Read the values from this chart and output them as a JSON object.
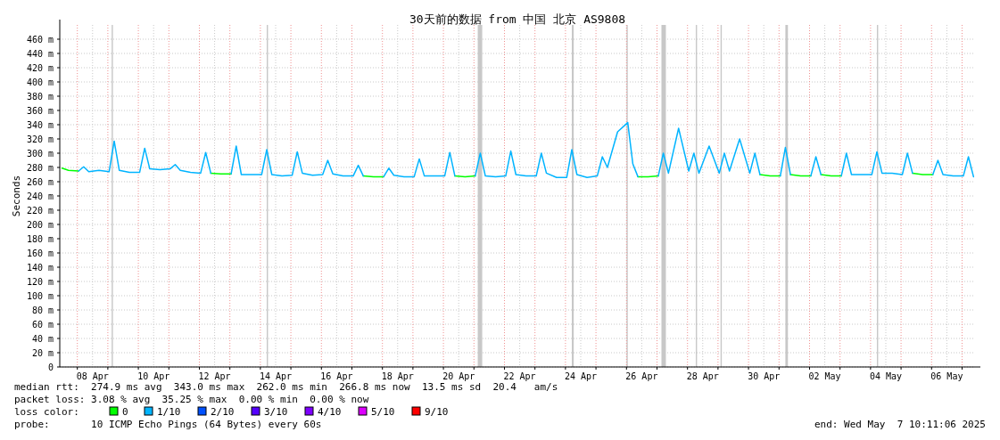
{
  "chart_data": {
    "type": "line",
    "title": "30天前的数据 from 中国 北京 AS9808",
    "ylabel": "Seconds",
    "legend_title": "loss color:",
    "legend": "bottom",
    "grid": true,
    "marker": "none",
    "line_style": "solid",
    "xlim": [
      "2025-04-07T10:11",
      "2025-05-07T10:11"
    ],
    "xticks": [
      {
        "value": "2025-04-08T12:00",
        "label": "08 Apr"
      },
      {
        "value": "2025-04-10T12:00",
        "label": "10 Apr"
      },
      {
        "value": "2025-04-12T12:00",
        "label": "12 Apr"
      },
      {
        "value": "2025-04-14T12:00",
        "label": "14 Apr"
      },
      {
        "value": "2025-04-16T12:00",
        "label": "16 Apr"
      },
      {
        "value": "2025-04-18T12:00",
        "label": "18 Apr"
      },
      {
        "value": "2025-04-20T12:00",
        "label": "20 Apr"
      },
      {
        "value": "2025-04-22T12:00",
        "label": "22 Apr"
      },
      {
        "value": "2025-04-24T12:00",
        "label": "24 Apr"
      },
      {
        "value": "2025-04-26T12:00",
        "label": "26 Apr"
      },
      {
        "value": "2025-04-28T12:00",
        "label": "28 Apr"
      },
      {
        "value": "2025-04-30T12:00",
        "label": "30 Apr"
      },
      {
        "value": "2025-05-02T12:00",
        "label": "02 May"
      },
      {
        "value": "2025-05-04T12:00",
        "label": "04 May"
      },
      {
        "value": "2025-05-06T12:00",
        "label": "06 May"
      },
      {
        "value": "2025-04-08",
        "label": null
      },
      {
        "value": "2025-04-09",
        "label": null
      },
      {
        "value": "2025-04-10",
        "label": null
      },
      {
        "value": "2025-04-11",
        "label": null
      },
      {
        "value": "2025-04-12",
        "label": null
      },
      {
        "value": "2025-04-13",
        "label": null
      },
      {
        "value": "2025-04-14",
        "label": null
      },
      {
        "value": "2025-04-15",
        "label": null
      },
      {
        "value": "2025-04-16",
        "label": null
      },
      {
        "value": "2025-04-17",
        "label": null
      },
      {
        "value": "2025-04-18",
        "label": null
      },
      {
        "value": "2025-04-19",
        "label": null
      },
      {
        "value": "2025-04-20",
        "label": null
      },
      {
        "value": "2025-04-21",
        "label": null
      },
      {
        "value": "2025-04-22",
        "label": null
      },
      {
        "value": "2025-04-23",
        "label": null
      },
      {
        "value": "2025-04-24",
        "label": null
      },
      {
        "value": "2025-04-25",
        "label": null
      },
      {
        "value": "2025-04-26",
        "label": null
      },
      {
        "value": "2025-04-27",
        "label": null
      },
      {
        "value": "2025-04-28",
        "label": null
      },
      {
        "value": "2025-04-29",
        "label": null
      },
      {
        "value": "2025-04-30",
        "label": null
      },
      {
        "value": "2025-05-01",
        "label": null
      },
      {
        "value": "2025-05-02",
        "label": null
      },
      {
        "value": "2025-05-03",
        "label": null
      },
      {
        "value": "2025-05-04",
        "label": null
      },
      {
        "value": "2025-05-05",
        "label": null
      },
      {
        "value": "2025-05-06",
        "label": null
      },
      {
        "value": "2025-05-07",
        "label": null
      }
    ],
    "ylim": [
      0,
      480
    ],
    "yticks": [
      0,
      {
        "value": 20,
        "label": "20 m"
      },
      {
        "value": 40,
        "label": "40 m"
      },
      {
        "value": 60,
        "label": "60 m"
      },
      {
        "value": 80,
        "label": "80 m"
      },
      {
        "value": 100,
        "label": "100 m"
      },
      {
        "value": 120,
        "label": "120 m"
      },
      {
        "value": 140,
        "label": "140 m"
      },
      {
        "value": 160,
        "label": "160 m"
      },
      {
        "value": 180,
        "label": "180 m"
      },
      {
        "value": 200,
        "label": "200 m"
      },
      {
        "value": 220,
        "label": "220 m"
      },
      {
        "value": 240,
        "label": "240 m"
      },
      {
        "value": 260,
        "label": "260 m"
      },
      {
        "value": 280,
        "label": "280 m"
      },
      {
        "value": 300,
        "label": "300 m"
      },
      {
        "value": 320,
        "label": "320 m"
      },
      {
        "value": 340,
        "label": "340 m"
      },
      {
        "value": 360,
        "label": "360 m"
      },
      {
        "value": 380,
        "label": "380 m"
      },
      {
        "value": 400,
        "label": "400 m"
      },
      {
        "value": 420,
        "label": "420 m"
      },
      {
        "value": 440,
        "label": "440 m"
      },
      {
        "value": 460,
        "label": "460 m"
      }
    ],
    "x": [
      "2025-04-07T12:00",
      "2025-04-07T17:00",
      "2025-04-08T01:00",
      "2025-04-08T05:00",
      "2025-04-08T09:00",
      "2025-04-08T17:00",
      "2025-04-09T01:00",
      "2025-04-09T05:00",
      "2025-04-09T09:00",
      "2025-04-09T17:00",
      "2025-04-10T01:00",
      "2025-04-10T05:00",
      "2025-04-10T09:00",
      "2025-04-10T17:00",
      "2025-04-11T01:00",
      "2025-04-11T05:00",
      "2025-04-11T09:00",
      "2025-04-11T17:00",
      "2025-04-12T01:00",
      "2025-04-12T05:00",
      "2025-04-12T09:00",
      "2025-04-12T17:00",
      "2025-04-13T01:00",
      "2025-04-13T05:00",
      "2025-04-13T09:00",
      "2025-04-13T17:00",
      "2025-04-14T01:00",
      "2025-04-14T05:00",
      "2025-04-14T09:00",
      "2025-04-14T17:00",
      "2025-04-15T01:00",
      "2025-04-15T05:00",
      "2025-04-15T09:00",
      "2025-04-15T17:00",
      "2025-04-16T01:00",
      "2025-04-16T05:00",
      "2025-04-16T09:00",
      "2025-04-16T17:00",
      "2025-04-17T01:00",
      "2025-04-17T05:00",
      "2025-04-17T09:00",
      "2025-04-17T17:00",
      "2025-04-18T01:00",
      "2025-04-18T05:00",
      "2025-04-18T09:00",
      "2025-04-18T17:00",
      "2025-04-19T01:00",
      "2025-04-19T05:00",
      "2025-04-19T09:00",
      "2025-04-19T17:00",
      "2025-04-20T01:00",
      "2025-04-20T05:00",
      "2025-04-20T09:00",
      "2025-04-20T17:00",
      "2025-04-21T01:00",
      "2025-04-21T05:00",
      "2025-04-21T09:00",
      "2025-04-21T17:00",
      "2025-04-22T01:00",
      "2025-04-22T05:00",
      "2025-04-22T09:00",
      "2025-04-22T17:00",
      "2025-04-23T01:00",
      "2025-04-23T05:00",
      "2025-04-23T09:00",
      "2025-04-23T17:00",
      "2025-04-24T01:00",
      "2025-04-24T05:00",
      "2025-04-24T09:00",
      "2025-04-24T17:00",
      "2025-04-25T01:00",
      "2025-04-25T05:00",
      "2025-04-25T09:00",
      "2025-04-25T17:00",
      "2025-04-26T01:00",
      "2025-04-26T05:00",
      "2025-04-26T09:00",
      "2025-04-26T17:00",
      "2025-04-27T01:00",
      "2025-04-27T05:00",
      "2025-04-27T09:00",
      "2025-04-27T17:00",
      "2025-04-28T01:00",
      "2025-04-28T05:00",
      "2025-04-28T09:00",
      "2025-04-28T17:00",
      "2025-04-29T01:00",
      "2025-04-29T05:00",
      "2025-04-29T09:00",
      "2025-04-29T17:00",
      "2025-04-30T01:00",
      "2025-04-30T05:00",
      "2025-04-30T09:00",
      "2025-04-30T17:00",
      "2025-05-01T01:00",
      "2025-05-01T05:00",
      "2025-05-01T09:00",
      "2025-05-01T17:00",
      "2025-05-02T01:00",
      "2025-05-02T05:00",
      "2025-05-02T09:00",
      "2025-05-02T17:00",
      "2025-05-03T01:00",
      "2025-05-03T05:00",
      "2025-05-03T09:00",
      "2025-05-03T17:00",
      "2025-05-04T01:00",
      "2025-05-04T05:00",
      "2025-05-04T09:00",
      "2025-05-04T17:00",
      "2025-05-05T01:00",
      "2025-05-05T05:00",
      "2025-05-05T09:00",
      "2025-05-05T17:00",
      "2025-05-06T01:00",
      "2025-05-06T05:00",
      "2025-05-06T09:00",
      "2025-05-06T17:00",
      "2025-05-07T01:00",
      "2025-05-07T05:00",
      "2025-05-07T09:00"
    ],
    "series": [
      {
        "name": "0",
        "color": "#00ff00",
        "values": [
          279,
          276,
          275,
          null,
          null,
          null,
          null,
          null,
          null,
          null,
          null,
          null,
          null,
          null,
          null,
          null,
          null,
          null,
          null,
          null,
          272,
          271,
          271,
          null,
          null,
          null,
          null,
          null,
          null,
          null,
          null,
          null,
          null,
          null,
          null,
          null,
          null,
          null,
          null,
          null,
          268,
          267,
          267,
          null,
          null,
          null,
          null,
          null,
          null,
          null,
          null,
          null,
          268,
          267,
          268,
          null,
          null,
          null,
          null,
          null,
          null,
          null,
          null,
          null,
          null,
          null,
          null,
          null,
          null,
          null,
          null,
          null,
          null,
          null,
          null,
          null,
          267,
          267,
          268,
          null,
          null,
          null,
          null,
          null,
          null,
          null,
          null,
          null,
          null,
          null,
          null,
          null,
          270,
          268,
          268,
          null,
          270,
          268,
          268,
          null,
          270,
          268,
          268,
          null,
          null,
          null,
          null,
          null,
          null,
          null,
          null,
          null,
          272,
          270,
          270,
          null,
          null,
          null,
          null,
          null,
          null
        ]
      },
      {
        "name": "1/10",
        "color": "#00b4ff",
        "values": [
          null,
          null,
          275,
          281,
          274,
          276,
          274,
          317,
          276,
          273,
          273,
          307,
          278,
          277,
          278,
          284,
          276,
          273,
          272,
          301,
          272,
          null,
          271,
          310,
          270,
          270,
          270,
          305,
          270,
          268,
          269,
          302,
          272,
          269,
          270,
          290,
          271,
          268,
          268,
          283,
          268,
          null,
          267,
          279,
          269,
          267,
          267,
          292,
          268,
          268,
          268,
          301,
          268,
          null,
          268,
          300,
          268,
          267,
          268,
          303,
          270,
          268,
          268,
          300,
          272,
          266,
          266,
          305,
          270,
          266,
          268,
          295,
          280,
          330,
          343,
          285,
          267,
          null,
          268,
          300,
          272,
          335,
          275,
          300,
          272,
          310,
          272,
          300,
          275,
          320,
          272,
          300,
          270,
          null,
          268,
          308,
          270,
          null,
          268,
          295,
          270,
          null,
          268,
          300,
          270,
          270,
          270,
          302,
          272,
          272,
          270,
          300,
          272,
          null,
          270,
          290,
          270,
          268,
          268,
          295,
          267
        ]
      },
      {
        "name": "2/10",
        "color": "#0050ff",
        "values": [
          null,
          null,
          null,
          null,
          null,
          null,
          null,
          null,
          null,
          null,
          null,
          null,
          null,
          null,
          null,
          null,
          null,
          null,
          null,
          null,
          null,
          null,
          null,
          null,
          null,
          null,
          null,
          null,
          null,
          null,
          null,
          null,
          null,
          null,
          null,
          null,
          null,
          null,
          null,
          null,
          null,
          null,
          null,
          null,
          null,
          null,
          null,
          null,
          null,
          null,
          null,
          null,
          null,
          null,
          null,
          null,
          null,
          null,
          null,
          null,
          null,
          null,
          null,
          null,
          null,
          null,
          null,
          null,
          null,
          null,
          null,
          null,
          null,
          null,
          null,
          null,
          null,
          null,
          null,
          null,
          null,
          null,
          null,
          null,
          null,
          null,
          null,
          null,
          null,
          null,
          null,
          null,
          null,
          null,
          null,
          null,
          null,
          null,
          null,
          null,
          null,
          null,
          null,
          null,
          null,
          null,
          null,
          null,
          null,
          null,
          null,
          null,
          null,
          null,
          null,
          null,
          null,
          null,
          null,
          null,
          null
        ]
      },
      {
        "name": "3/10",
        "color": "#5500ff",
        "values": [
          null,
          null,
          null,
          null,
          null,
          null,
          null,
          null,
          null,
          null,
          null,
          null,
          null,
          null,
          null,
          null,
          null,
          null,
          null,
          null,
          null,
          null,
          null,
          null,
          null,
          null,
          null,
          null,
          null,
          null,
          null,
          null,
          null,
          null,
          null,
          null,
          null,
          null,
          null,
          null,
          null,
          null,
          null,
          null,
          null,
          null,
          null,
          null,
          null,
          null,
          null,
          null,
          null,
          null,
          null,
          null,
          null,
          null,
          null,
          null,
          null,
          null,
          null,
          null,
          null,
          null,
          null,
          null,
          null,
          null,
          null,
          null,
          null,
          null,
          null,
          null,
          null,
          null,
          null,
          null,
          null,
          null,
          null,
          null,
          null,
          null,
          null,
          null,
          null,
          null,
          null,
          null,
          null,
          null,
          null,
          null,
          null,
          null,
          null,
          null,
          null,
          null,
          null,
          null,
          null,
          null,
          null,
          null,
          null,
          null,
          null,
          null,
          null,
          null,
          null,
          null,
          null,
          null,
          null,
          null,
          null
        ]
      },
      {
        "name": "4/10",
        "color": "#7e00ff",
        "values": [
          null,
          null,
          null,
          null,
          null,
          null,
          null,
          null,
          null,
          null,
          null,
          null,
          null,
          null,
          null,
          null,
          null,
          null,
          null,
          null,
          null,
          null,
          null,
          null,
          null,
          null,
          null,
          null,
          null,
          null,
          null,
          null,
          null,
          null,
          null,
          null,
          null,
          null,
          null,
          null,
          null,
          null,
          null,
          null,
          null,
          null,
          null,
          null,
          null,
          null,
          null,
          null,
          null,
          null,
          null,
          null,
          null,
          null,
          null,
          null,
          null,
          null,
          null,
          null,
          null,
          null,
          null,
          null,
          null,
          null,
          null,
          null,
          null,
          null,
          null,
          null,
          null,
          null,
          null,
          null,
          null,
          null,
          null,
          null,
          null,
          null,
          null,
          null,
          null,
          null,
          null,
          null,
          null,
          null,
          null,
          null,
          null,
          null,
          null,
          null,
          null,
          null,
          null,
          null,
          null,
          null,
          null,
          null,
          null,
          null,
          null,
          null,
          null,
          null,
          null,
          null,
          null,
          null,
          null,
          null,
          null
        ]
      },
      {
        "name": "5/10",
        "color": "#dd00ff",
        "values": [
          null,
          null,
          null,
          null,
          null,
          null,
          null,
          null,
          null,
          null,
          null,
          null,
          null,
          null,
          null,
          null,
          null,
          null,
          null,
          null,
          null,
          null,
          null,
          null,
          null,
          null,
          null,
          null,
          null,
          null,
          null,
          null,
          null,
          null,
          null,
          null,
          null,
          null,
          null,
          null,
          null,
          null,
          null,
          null,
          null,
          null,
          null,
          null,
          null,
          null,
          null,
          null,
          null,
          null,
          null,
          null,
          null,
          null,
          null,
          null,
          null,
          null,
          null,
          null,
          null,
          null,
          null,
          null,
          null,
          null,
          null,
          null,
          null,
          null,
          null,
          null,
          null,
          null,
          null,
          null,
          null,
          null,
          null,
          null,
          null,
          null,
          null,
          null,
          null,
          null,
          null,
          null,
          null,
          null,
          null,
          null,
          null,
          null,
          null,
          null,
          null,
          null,
          null,
          null,
          null,
          null,
          null,
          null,
          null,
          null,
          null,
          null,
          null,
          null,
          null,
          null,
          null,
          null,
          null,
          null,
          null
        ]
      },
      {
        "name": "9/10",
        "color": "#ff0000",
        "values": [
          null,
          null,
          null,
          null,
          null,
          null,
          null,
          null,
          null,
          null,
          null,
          null,
          null,
          null,
          null,
          null,
          null,
          null,
          null,
          null,
          null,
          null,
          null,
          null,
          null,
          null,
          null,
          null,
          null,
          null,
          null,
          null,
          null,
          null,
          null,
          null,
          null,
          null,
          null,
          null,
          null,
          null,
          null,
          null,
          null,
          null,
          null,
          null,
          null,
          null,
          null,
          null,
          null,
          null,
          null,
          null,
          null,
          null,
          null,
          null,
          null,
          null,
          null,
          null,
          null,
          null,
          null,
          null,
          null,
          null,
          null,
          null,
          null,
          null,
          null,
          null,
          null,
          null,
          null,
          null,
          null,
          null,
          null,
          null,
          null,
          null,
          null,
          null,
          null,
          null,
          null,
          null,
          null,
          null,
          null,
          null,
          null,
          null,
          null,
          null,
          null,
          null,
          null,
          null,
          null,
          null,
          null,
          null,
          null,
          null,
          null,
          null,
          null,
          null,
          null,
          null,
          null,
          null,
          null,
          null,
          null
        ]
      }
    ],
    "bands": [
      {
        "axis": "x",
        "from": "2025-04-09T03:00",
        "to": "2025-04-09T04:00",
        "color": "#c8c8c8"
      },
      {
        "axis": "x",
        "from": "2025-04-14T05:00",
        "to": "2025-04-14T06:00",
        "color": "#c8c8c8"
      },
      {
        "axis": "x",
        "from": "2025-04-21T03:00",
        "to": "2025-04-21T06:30",
        "color": "#c8c8c8"
      },
      {
        "axis": "x",
        "from": "2025-04-24T05:00",
        "to": "2025-04-24T06:30",
        "color": "#c8c8c8"
      },
      {
        "axis": "x",
        "from": "2025-04-26T00:00",
        "to": "2025-04-26T01:00",
        "color": "#c8c8c8"
      },
      {
        "axis": "x",
        "from": "2025-04-27T03:30",
        "to": "2025-04-27T07:00",
        "color": "#c8c8c8"
      },
      {
        "axis": "x",
        "from": "2025-04-28T06:30",
        "to": "2025-04-28T07:30",
        "color": "#c8c8c8"
      },
      {
        "axis": "x",
        "from": "2025-04-29T02:00",
        "to": "2025-04-29T03:00",
        "color": "#c8c8c8"
      },
      {
        "axis": "x",
        "from": "2025-05-01T05:00",
        "to": "2025-05-01T07:00",
        "color": "#c8c8c8"
      },
      {
        "axis": "x",
        "from": "2025-05-04T05:00",
        "to": "2025-05-04T06:00",
        "color": "#c8c8c8"
      }
    ],
    "annotations": [
      "median rtt:  274.9 ms avg  343.0 ms max  262.0 ms min  266.8 ms now  13.5 ms sd  20.4   am/s",
      "packet loss: 3.08 % avg  35.25 % max  0.00 % min  0.00 % now",
      "probe:       10 ICMP Echo Pings (64 Bytes) every 60s",
      "end: Wed May  7 10:11:06 2025"
    ]
  }
}
